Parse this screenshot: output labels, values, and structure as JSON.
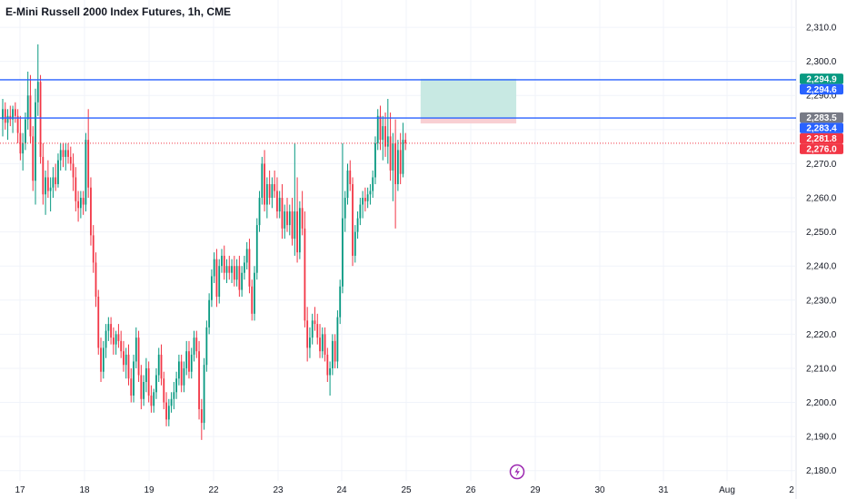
{
  "chart_data": {
    "type": "candlestick",
    "title": "E-Mini Russell 2000 Index Futures, 1h, CME",
    "ylim": [
      2177,
      2318
    ],
    "y_ticks": [
      2310,
      2300,
      2290,
      2280,
      2270,
      2260,
      2250,
      2240,
      2230,
      2220,
      2210,
      2200,
      2190,
      2180
    ],
    "y_tick_labels": [
      "2,310.0",
      "2,300.0",
      "2,290.0",
      "2,280.0",
      "2,270.0",
      "2,260.0",
      "2,250.0",
      "2,240.0",
      "2,230.0",
      "2,220.0",
      "2,210.0",
      "2,200.0",
      "2,190.0",
      "2,180.0"
    ],
    "x_ticks": [
      "17",
      "18",
      "19",
      "22",
      "23",
      "24",
      "25",
      "26",
      "29",
      "30",
      "31",
      "Aug",
      "2"
    ],
    "colors": {
      "up": "#089981",
      "down": "#f23645",
      "line": "#2962ff",
      "target_zone": "#c8e9e3",
      "stop_zone": "#f8cfd3",
      "dotted": "#f23645",
      "axis_text": "#131722"
    },
    "horizontal_lines": [
      2294.6,
      2283.4
    ],
    "current_price_line": 2276.0,
    "position_zone": {
      "entry": 2283.5,
      "target": 2294.9,
      "stop": 2281.8,
      "from_index": 166,
      "to_index": 204
    },
    "price_badges": [
      {
        "label": "2,294.9",
        "value": 2294.9,
        "color": "#089981"
      },
      {
        "label": "2,294.6",
        "value": 2294.6,
        "color": "#2962ff"
      },
      {
        "label": "2,283.5",
        "value": 2283.5,
        "color": "#787b86"
      },
      {
        "label": "2,283.4",
        "value": 2283.4,
        "color": "#2962ff"
      },
      {
        "label": "2,281.8",
        "value": 2281.8,
        "color": "#f23645"
      },
      {
        "label": "2,276.0",
        "value": 2276.0,
        "color": "#f23645"
      }
    ],
    "bars": [
      {
        "o": 2283,
        "h": 2289,
        "l": 2278,
        "c": 2286
      },
      {
        "o": 2286,
        "h": 2288,
        "l": 2280,
        "c": 2282
      },
      {
        "o": 2282,
        "h": 2286,
        "l": 2277,
        "c": 2284
      },
      {
        "o": 2284,
        "h": 2287,
        "l": 2281,
        "c": 2283
      },
      {
        "o": 2283,
        "h": 2287,
        "l": 2279,
        "c": 2286
      },
      {
        "o": 2286,
        "h": 2288,
        "l": 2282,
        "c": 2284
      },
      {
        "o": 2284,
        "h": 2286,
        "l": 2276,
        "c": 2279
      },
      {
        "o": 2279,
        "h": 2284,
        "l": 2271,
        "c": 2273
      },
      {
        "o": 2273,
        "h": 2279,
        "l": 2268,
        "c": 2276
      },
      {
        "o": 2276,
        "h": 2285,
        "l": 2274,
        "c": 2283
      },
      {
        "o": 2283,
        "h": 2297,
        "l": 2280,
        "c": 2290
      },
      {
        "o": 2290,
        "h": 2296,
        "l": 2276,
        "c": 2278
      },
      {
        "o": 2278,
        "h": 2281,
        "l": 2262,
        "c": 2265
      },
      {
        "o": 2265,
        "h": 2292,
        "l": 2258,
        "c": 2288
      },
      {
        "o": 2288,
        "h": 2305,
        "l": 2284,
        "c": 2294
      },
      {
        "o": 2294,
        "h": 2296,
        "l": 2270,
        "c": 2272
      },
      {
        "o": 2272,
        "h": 2276,
        "l": 2258,
        "c": 2261
      },
      {
        "o": 2261,
        "h": 2268,
        "l": 2255,
        "c": 2266
      },
      {
        "o": 2266,
        "h": 2271,
        "l": 2260,
        "c": 2262
      },
      {
        "o": 2262,
        "h": 2266,
        "l": 2256,
        "c": 2263
      },
      {
        "o": 2263,
        "h": 2269,
        "l": 2260,
        "c": 2266
      },
      {
        "o": 2266,
        "h": 2270,
        "l": 2262,
        "c": 2264
      },
      {
        "o": 2264,
        "h": 2273,
        "l": 2263,
        "c": 2271
      },
      {
        "o": 2271,
        "h": 2276,
        "l": 2268,
        "c": 2274
      },
      {
        "o": 2274,
        "h": 2276,
        "l": 2269,
        "c": 2272
      },
      {
        "o": 2272,
        "h": 2276,
        "l": 2268,
        "c": 2274
      },
      {
        "o": 2274,
        "h": 2276,
        "l": 2270,
        "c": 2272
      },
      {
        "o": 2272,
        "h": 2275,
        "l": 2268,
        "c": 2270
      },
      {
        "o": 2270,
        "h": 2273,
        "l": 2262,
        "c": 2266
      },
      {
        "o": 2266,
        "h": 2269,
        "l": 2256,
        "c": 2259
      },
      {
        "o": 2259,
        "h": 2262,
        "l": 2253,
        "c": 2257
      },
      {
        "o": 2257,
        "h": 2262,
        "l": 2254,
        "c": 2260
      },
      {
        "o": 2260,
        "h": 2262,
        "l": 2255,
        "c": 2258
      },
      {
        "o": 2258,
        "h": 2279,
        "l": 2256,
        "c": 2277
      },
      {
        "o": 2277,
        "h": 2286,
        "l": 2260,
        "c": 2263
      },
      {
        "o": 2263,
        "h": 2266,
        "l": 2246,
        "c": 2249
      },
      {
        "o": 2249,
        "h": 2252,
        "l": 2238,
        "c": 2241
      },
      {
        "o": 2241,
        "h": 2244,
        "l": 2228,
        "c": 2231
      },
      {
        "o": 2231,
        "h": 2233,
        "l": 2214,
        "c": 2216
      },
      {
        "o": 2216,
        "h": 2219,
        "l": 2206,
        "c": 2209
      },
      {
        "o": 2209,
        "h": 2218,
        "l": 2207,
        "c": 2216
      },
      {
        "o": 2216,
        "h": 2223,
        "l": 2213,
        "c": 2221
      },
      {
        "o": 2221,
        "h": 2225,
        "l": 2218,
        "c": 2223
      },
      {
        "o": 2223,
        "h": 2225,
        "l": 2217,
        "c": 2219
      },
      {
        "o": 2219,
        "h": 2222,
        "l": 2214,
        "c": 2217
      },
      {
        "o": 2217,
        "h": 2221,
        "l": 2214,
        "c": 2220
      },
      {
        "o": 2220,
        "h": 2223,
        "l": 2216,
        "c": 2218
      },
      {
        "o": 2218,
        "h": 2221,
        "l": 2213,
        "c": 2215
      },
      {
        "o": 2215,
        "h": 2218,
        "l": 2209,
        "c": 2211
      },
      {
        "o": 2211,
        "h": 2216,
        "l": 2207,
        "c": 2214
      },
      {
        "o": 2214,
        "h": 2217,
        "l": 2205,
        "c": 2207
      },
      {
        "o": 2207,
        "h": 2210,
        "l": 2200,
        "c": 2202
      },
      {
        "o": 2202,
        "h": 2214,
        "l": 2200,
        "c": 2212
      },
      {
        "o": 2212,
        "h": 2222,
        "l": 2210,
        "c": 2219
      },
      {
        "o": 2219,
        "h": 2221,
        "l": 2206,
        "c": 2208
      },
      {
        "o": 2208,
        "h": 2211,
        "l": 2198,
        "c": 2201
      },
      {
        "o": 2201,
        "h": 2208,
        "l": 2199,
        "c": 2206
      },
      {
        "o": 2206,
        "h": 2213,
        "l": 2203,
        "c": 2210
      },
      {
        "o": 2210,
        "h": 2212,
        "l": 2200,
        "c": 2202
      },
      {
        "o": 2202,
        "h": 2205,
        "l": 2197,
        "c": 2199
      },
      {
        "o": 2199,
        "h": 2204,
        "l": 2197,
        "c": 2203
      },
      {
        "o": 2203,
        "h": 2210,
        "l": 2201,
        "c": 2208
      },
      {
        "o": 2208,
        "h": 2216,
        "l": 2206,
        "c": 2214
      },
      {
        "o": 2214,
        "h": 2217,
        "l": 2205,
        "c": 2207
      },
      {
        "o": 2207,
        "h": 2209,
        "l": 2198,
        "c": 2200
      },
      {
        "o": 2200,
        "h": 2203,
        "l": 2193,
        "c": 2195
      },
      {
        "o": 2195,
        "h": 2201,
        "l": 2193,
        "c": 2199
      },
      {
        "o": 2199,
        "h": 2203,
        "l": 2197,
        "c": 2201
      },
      {
        "o": 2201,
        "h": 2206,
        "l": 2198,
        "c": 2203
      },
      {
        "o": 2203,
        "h": 2209,
        "l": 2201,
        "c": 2207
      },
      {
        "o": 2207,
        "h": 2214,
        "l": 2205,
        "c": 2212
      },
      {
        "o": 2212,
        "h": 2214,
        "l": 2203,
        "c": 2205
      },
      {
        "o": 2205,
        "h": 2212,
        "l": 2203,
        "c": 2210
      },
      {
        "o": 2210,
        "h": 2218,
        "l": 2208,
        "c": 2215
      },
      {
        "o": 2215,
        "h": 2218,
        "l": 2207,
        "c": 2209
      },
      {
        "o": 2209,
        "h": 2216,
        "l": 2207,
        "c": 2214
      },
      {
        "o": 2214,
        "h": 2221,
        "l": 2212,
        "c": 2219
      },
      {
        "o": 2219,
        "h": 2221,
        "l": 2213,
        "c": 2215
      },
      {
        "o": 2215,
        "h": 2218,
        "l": 2195,
        "c": 2198
      },
      {
        "o": 2198,
        "h": 2201,
        "l": 2189,
        "c": 2194
      },
      {
        "o": 2194,
        "h": 2213,
        "l": 2192,
        "c": 2211
      },
      {
        "o": 2211,
        "h": 2224,
        "l": 2209,
        "c": 2222
      },
      {
        "o": 2222,
        "h": 2232,
        "l": 2220,
        "c": 2230
      },
      {
        "o": 2230,
        "h": 2239,
        "l": 2228,
        "c": 2237
      },
      {
        "o": 2237,
        "h": 2244,
        "l": 2235,
        "c": 2242
      },
      {
        "o": 2242,
        "h": 2245,
        "l": 2228,
        "c": 2231
      },
      {
        "o": 2231,
        "h": 2242,
        "l": 2229,
        "c": 2240
      },
      {
        "o": 2240,
        "h": 2245,
        "l": 2238,
        "c": 2243
      },
      {
        "o": 2243,
        "h": 2246,
        "l": 2236,
        "c": 2238
      },
      {
        "o": 2238,
        "h": 2242,
        "l": 2235,
        "c": 2240
      },
      {
        "o": 2240,
        "h": 2243,
        "l": 2236,
        "c": 2238
      },
      {
        "o": 2238,
        "h": 2242,
        "l": 2235,
        "c": 2240
      },
      {
        "o": 2240,
        "h": 2243,
        "l": 2234,
        "c": 2236
      },
      {
        "o": 2236,
        "h": 2242,
        "l": 2234,
        "c": 2240
      },
      {
        "o": 2240,
        "h": 2243,
        "l": 2231,
        "c": 2233
      },
      {
        "o": 2233,
        "h": 2240,
        "l": 2231,
        "c": 2238
      },
      {
        "o": 2238,
        "h": 2243,
        "l": 2236,
        "c": 2241
      },
      {
        "o": 2241,
        "h": 2247,
        "l": 2239,
        "c": 2245
      },
      {
        "o": 2245,
        "h": 2248,
        "l": 2232,
        "c": 2234
      },
      {
        "o": 2234,
        "h": 2236,
        "l": 2224,
        "c": 2226
      },
      {
        "o": 2226,
        "h": 2240,
        "l": 2224,
        "c": 2238
      },
      {
        "o": 2238,
        "h": 2254,
        "l": 2236,
        "c": 2252
      },
      {
        "o": 2252,
        "h": 2262,
        "l": 2250,
        "c": 2260
      },
      {
        "o": 2260,
        "h": 2272,
        "l": 2258,
        "c": 2270
      },
      {
        "o": 2270,
        "h": 2274,
        "l": 2256,
        "c": 2258
      },
      {
        "o": 2258,
        "h": 2266,
        "l": 2254,
        "c": 2264
      },
      {
        "o": 2264,
        "h": 2268,
        "l": 2258,
        "c": 2260
      },
      {
        "o": 2260,
        "h": 2266,
        "l": 2257,
        "c": 2264
      },
      {
        "o": 2264,
        "h": 2268,
        "l": 2260,
        "c": 2262
      },
      {
        "o": 2262,
        "h": 2266,
        "l": 2254,
        "c": 2256
      },
      {
        "o": 2256,
        "h": 2262,
        "l": 2254,
        "c": 2260
      },
      {
        "o": 2260,
        "h": 2264,
        "l": 2248,
        "c": 2251
      },
      {
        "o": 2251,
        "h": 2258,
        "l": 2248,
        "c": 2256
      },
      {
        "o": 2256,
        "h": 2260,
        "l": 2250,
        "c": 2252
      },
      {
        "o": 2252,
        "h": 2258,
        "l": 2249,
        "c": 2256
      },
      {
        "o": 2256,
        "h": 2260,
        "l": 2246,
        "c": 2248
      },
      {
        "o": 2248,
        "h": 2276,
        "l": 2243,
        "c": 2256
      },
      {
        "o": 2256,
        "h": 2266,
        "l": 2241,
        "c": 2244
      },
      {
        "o": 2244,
        "h": 2259,
        "l": 2242,
        "c": 2257
      },
      {
        "o": 2257,
        "h": 2262,
        "l": 2249,
        "c": 2251
      },
      {
        "o": 2251,
        "h": 2256,
        "l": 2222,
        "c": 2224
      },
      {
        "o": 2224,
        "h": 2228,
        "l": 2212,
        "c": 2216
      },
      {
        "o": 2216,
        "h": 2222,
        "l": 2213,
        "c": 2219
      },
      {
        "o": 2219,
        "h": 2226,
        "l": 2217,
        "c": 2224
      },
      {
        "o": 2224,
        "h": 2228,
        "l": 2221,
        "c": 2223
      },
      {
        "o": 2223,
        "h": 2226,
        "l": 2217,
        "c": 2219
      },
      {
        "o": 2219,
        "h": 2223,
        "l": 2213,
        "c": 2215
      },
      {
        "o": 2215,
        "h": 2222,
        "l": 2213,
        "c": 2220
      },
      {
        "o": 2220,
        "h": 2222,
        "l": 2212,
        "c": 2214
      },
      {
        "o": 2214,
        "h": 2216,
        "l": 2206,
        "c": 2208
      },
      {
        "o": 2208,
        "h": 2212,
        "l": 2202,
        "c": 2210
      },
      {
        "o": 2210,
        "h": 2220,
        "l": 2208,
        "c": 2218
      },
      {
        "o": 2218,
        "h": 2220,
        "l": 2210,
        "c": 2212
      },
      {
        "o": 2212,
        "h": 2227,
        "l": 2210,
        "c": 2225
      },
      {
        "o": 2225,
        "h": 2236,
        "l": 2223,
        "c": 2234
      },
      {
        "o": 2234,
        "h": 2276,
        "l": 2232,
        "c": 2254
      },
      {
        "o": 2254,
        "h": 2262,
        "l": 2250,
        "c": 2260
      },
      {
        "o": 2260,
        "h": 2270,
        "l": 2258,
        "c": 2268
      },
      {
        "o": 2268,
        "h": 2271,
        "l": 2262,
        "c": 2264
      },
      {
        "o": 2264,
        "h": 2266,
        "l": 2240,
        "c": 2243
      },
      {
        "o": 2243,
        "h": 2252,
        "l": 2241,
        "c": 2250
      },
      {
        "o": 2250,
        "h": 2256,
        "l": 2248,
        "c": 2254
      },
      {
        "o": 2254,
        "h": 2260,
        "l": 2252,
        "c": 2258
      },
      {
        "o": 2258,
        "h": 2262,
        "l": 2254,
        "c": 2260
      },
      {
        "o": 2260,
        "h": 2263,
        "l": 2256,
        "c": 2259
      },
      {
        "o": 2259,
        "h": 2263,
        "l": 2257,
        "c": 2261
      },
      {
        "o": 2261,
        "h": 2264,
        "l": 2258,
        "c": 2262
      },
      {
        "o": 2262,
        "h": 2268,
        "l": 2260,
        "c": 2266
      },
      {
        "o": 2266,
        "h": 2278,
        "l": 2264,
        "c": 2276
      },
      {
        "o": 2276,
        "h": 2286,
        "l": 2274,
        "c": 2284
      },
      {
        "o": 2284,
        "h": 2287,
        "l": 2274,
        "c": 2277
      },
      {
        "o": 2277,
        "h": 2284,
        "l": 2271,
        "c": 2281
      },
      {
        "o": 2281,
        "h": 2285,
        "l": 2272,
        "c": 2275
      },
      {
        "o": 2275,
        "h": 2289,
        "l": 2270,
        "c": 2278
      },
      {
        "o": 2278,
        "h": 2285,
        "l": 2265,
        "c": 2268
      },
      {
        "o": 2268,
        "h": 2279,
        "l": 2259,
        "c": 2276
      },
      {
        "o": 2276,
        "h": 2283,
        "l": 2251,
        "c": 2264
      },
      {
        "o": 2264,
        "h": 2277,
        "l": 2262,
        "c": 2274
      },
      {
        "o": 2274,
        "h": 2279,
        "l": 2264,
        "c": 2267
      },
      {
        "o": 2267,
        "h": 2282,
        "l": 2266,
        "c": 2277
      },
      {
        "o": 2277,
        "h": 2279,
        "l": 2274,
        "c": 2276
      }
    ]
  }
}
